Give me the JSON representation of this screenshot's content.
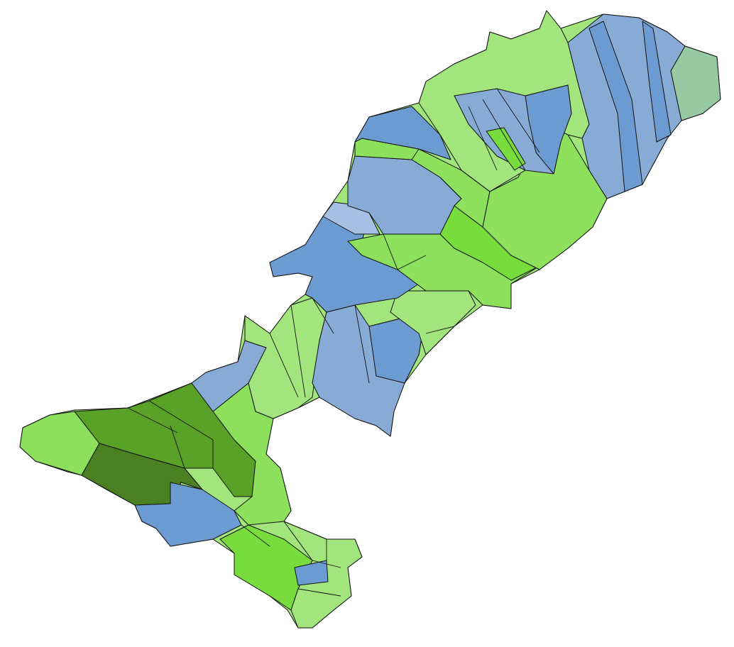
{
  "map": {
    "colors": {
      "light_green": "#a2e57c",
      "green": "#8ce05c",
      "bright_green": "#78dc3c",
      "mid_dark_green": "#6bba2e",
      "dark_green": "#5aa128",
      "darkest_green": "#4a7f22",
      "blue": "#6c9bd2",
      "mid_blue": "#88abd6",
      "pale_blue": "#a5c0e4",
      "teal_green": "#96c9a2"
    }
  }
}
